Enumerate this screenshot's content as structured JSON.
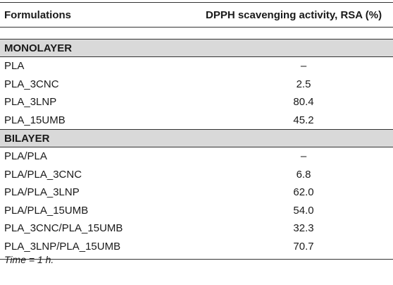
{
  "table": {
    "headers": {
      "formulations": "Formulations",
      "activity": "DPPH scavenging activity, RSA (%)"
    },
    "sections": [
      {
        "title": "MONOLAYER",
        "rows": [
          {
            "formulation": "PLA",
            "value": "–"
          },
          {
            "formulation": "PLA_3CNC",
            "value": "2.5"
          },
          {
            "formulation": "PLA_3LNP",
            "value": "80.4"
          },
          {
            "formulation": "PLA_15UMB",
            "value": "45.2"
          }
        ]
      },
      {
        "title": "BILAYER",
        "rows": [
          {
            "formulation": "PLA/PLA",
            "value": "–"
          },
          {
            "formulation": "PLA/PLA_3CNC",
            "value": "6.8"
          },
          {
            "formulation": "PLA/PLA_3LNP",
            "value": "62.0"
          },
          {
            "formulation": "PLA/PLA_15UMB",
            "value": "54.0"
          },
          {
            "formulation": "PLA_3CNC/PLA_15UMB",
            "value": "32.3"
          },
          {
            "formulation": "PLA_3LNP/PLA_15UMB",
            "value": "70.7"
          }
        ]
      }
    ]
  },
  "footnote": "Time = 1 h."
}
